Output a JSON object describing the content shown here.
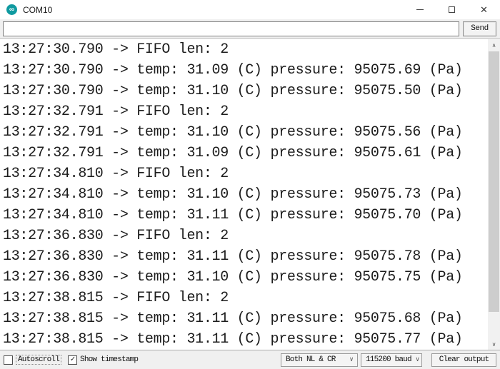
{
  "window": {
    "title": "COM10",
    "app": "Arduino Serial Monitor"
  },
  "icons": {
    "infinity": "∞",
    "close": "✕",
    "scroll_up": "∧",
    "scroll_down": "∨",
    "chevron_down": "∨",
    "check": "✓"
  },
  "send_bar": {
    "input_value": "",
    "input_placeholder": "",
    "send_label": "Send"
  },
  "console": {
    "lines": [
      "13:27:30.790 -> FIFO len: 2",
      "13:27:30.790 -> temp: 31.09 (C) pressure: 95075.69 (Pa)",
      "13:27:30.790 -> temp: 31.10 (C) pressure: 95075.50 (Pa)",
      "13:27:32.791 -> FIFO len: 2",
      "13:27:32.791 -> temp: 31.10 (C) pressure: 95075.56 (Pa)",
      "13:27:32.791 -> temp: 31.09 (C) pressure: 95075.61 (Pa)",
      "13:27:34.810 -> FIFO len: 2",
      "13:27:34.810 -> temp: 31.10 (C) pressure: 95075.73 (Pa)",
      "13:27:34.810 -> temp: 31.11 (C) pressure: 95075.70 (Pa)",
      "13:27:36.830 -> FIFO len: 2",
      "13:27:36.830 -> temp: 31.11 (C) pressure: 95075.78 (Pa)",
      "13:27:36.830 -> temp: 31.10 (C) pressure: 95075.75 (Pa)",
      "13:27:38.815 -> FIFO len: 2",
      "13:27:38.815 -> temp: 31.11 (C) pressure: 95075.68 (Pa)",
      "13:27:38.815 -> temp: 31.11 (C) pressure: 95075.77 (Pa)"
    ]
  },
  "status_bar": {
    "autoscroll_label": "Autoscroll",
    "autoscroll_checked": false,
    "timestamp_label": "Show timestamp",
    "timestamp_checked": true,
    "line_ending_value": "Both NL & CR",
    "baud_rate_value": "115200 baud",
    "clear_label": "Clear output"
  },
  "colors": {
    "arduino_teal": "#0f9aa0",
    "titlebar_bg": "#ffffff",
    "chrome_bg": "#f0f0f0",
    "console_bg": "#ffffff",
    "console_text": "#1c1c1c",
    "scrollbar_thumb": "#cdcdcd"
  }
}
